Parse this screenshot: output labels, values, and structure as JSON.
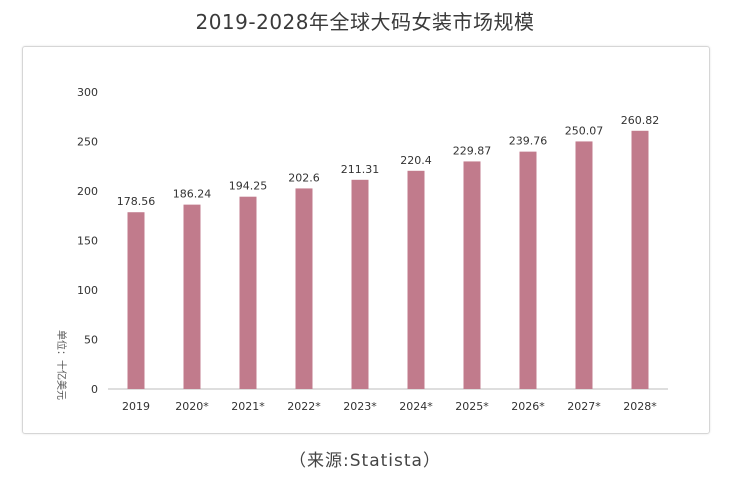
{
  "title": "2019-2028年全球大码女装市场规模",
  "source": "（来源:Statista）",
  "chart_data": {
    "type": "bar",
    "title": "2019-2028年全球大码女装市场规模",
    "categories": [
      "2019",
      "2020*",
      "2021*",
      "2022*",
      "2023*",
      "2024*",
      "2025*",
      "2026*",
      "2027*",
      "2028*"
    ],
    "values": [
      178.56,
      186.24,
      194.25,
      202.6,
      211.31,
      220.4,
      229.87,
      239.76,
      250.07,
      260.82
    ],
    "value_labels": [
      "178.56",
      "186.24",
      "194.25",
      "202.6",
      "211.31",
      "220.4",
      "229.87",
      "239.76",
      "250.07",
      "260.82"
    ],
    "ylabel": "单位：十亿美元",
    "xlabel": "",
    "ylim": [
      0,
      300
    ],
    "yticks": [
      0,
      50,
      100,
      150,
      200,
      250,
      300
    ],
    "grid": false,
    "legend": "none",
    "bar_color": "#c17b8c"
  }
}
